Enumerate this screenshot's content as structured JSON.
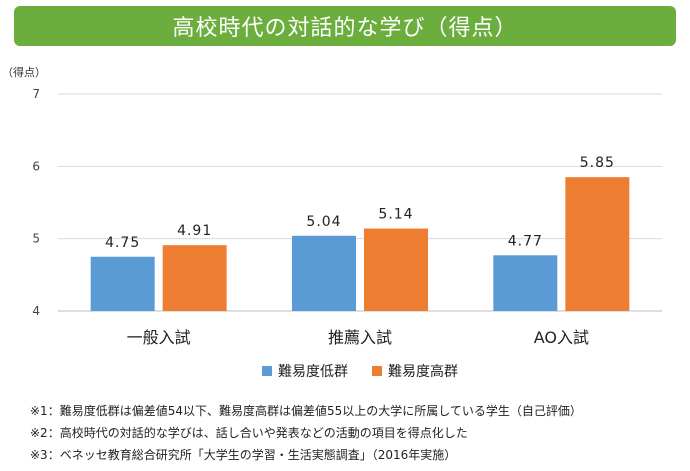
{
  "header": {
    "title": "高校時代の対話的な学び（得点）"
  },
  "chart_data": {
    "type": "bar",
    "title": "高校時代の対話的な学び（得点）",
    "ylabel": "（得点）",
    "xlabel": "",
    "ylim": [
      4,
      7
    ],
    "yticks": [
      4,
      5,
      6,
      7
    ],
    "grid": true,
    "legend_position": "bottom",
    "categories": [
      "一般入試",
      "推薦入試",
      "AO入試"
    ],
    "series": [
      {
        "name": "難易度低群",
        "color": "#5b9bd5",
        "values": [
          4.75,
          5.04,
          4.77
        ],
        "labels": [
          "4.75",
          "5.04",
          "4.77"
        ]
      },
      {
        "name": "難易度高群",
        "color": "#ed7d31",
        "values": [
          4.91,
          5.14,
          5.85
        ],
        "labels": [
          "4.91",
          "5.14",
          "5.85"
        ]
      }
    ]
  },
  "notes": [
    "※1：難易度低群は偏差値54以下、難易度高群は偏差値55以上の大学に所属している学生（自己評価）",
    "※2：高校時代の対話的な学びは、話し合いや発表などの活動の項目を得点化した",
    "※3：ベネッセ教育総合研究所「大学生の学習・生活実態調査」（2016年実施）"
  ]
}
